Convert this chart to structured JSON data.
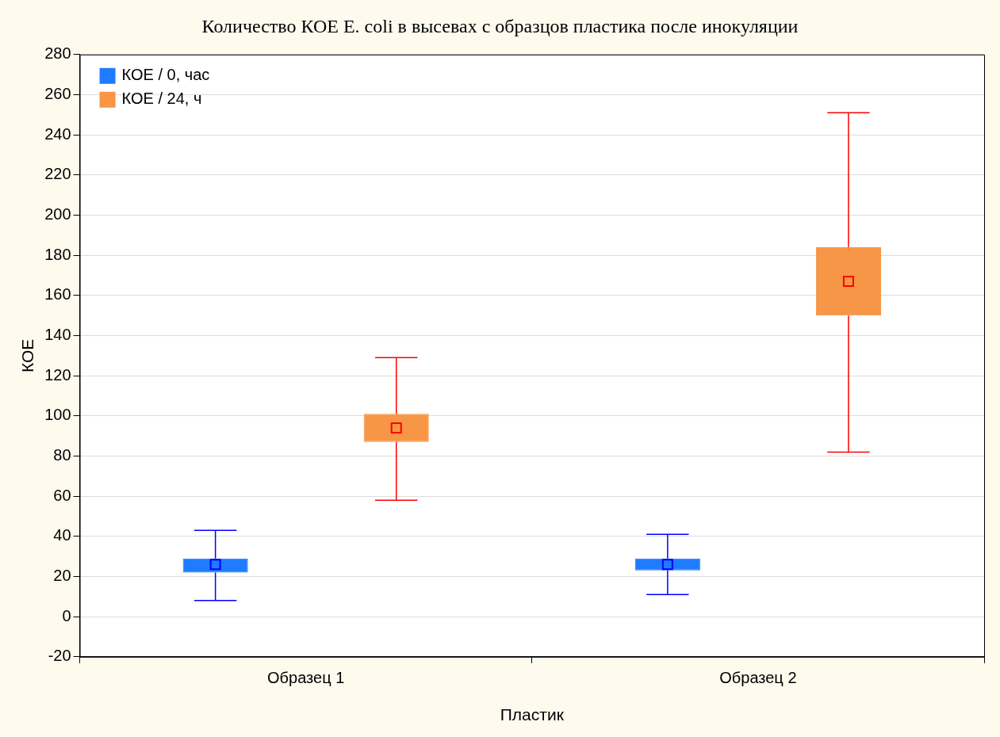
{
  "chart_data": {
    "type": "box",
    "title": "Количество КОЕ E. coli в высевах с образцов пластика после инокуляции",
    "xlabel": "Пластик",
    "ylabel": "КОЕ",
    "categories": [
      "Образец 1",
      "Образец 2"
    ],
    "series": [
      {
        "name": "КОЕ / 0, час",
        "color": "#1f7bff",
        "boxes": [
          {
            "low": 8,
            "q1": 22,
            "median": 26,
            "q3": 29,
            "high": 43
          },
          {
            "low": 11,
            "q1": 23,
            "median": 26,
            "q3": 29,
            "high": 41
          }
        ]
      },
      {
        "name": "КОЕ / 24, ч",
        "color": "#f79646",
        "boxes": [
          {
            "low": 58,
            "q1": 87,
            "median": 94,
            "q3": 101,
            "high": 129
          },
          {
            "low": 82,
            "q1": 150,
            "median": 167,
            "q3": 184,
            "high": 251
          }
        ]
      }
    ],
    "ylim": [
      -20,
      280
    ],
    "yticks": [
      -20,
      0,
      20,
      40,
      60,
      80,
      100,
      120,
      140,
      160,
      180,
      200,
      220,
      240,
      260,
      280
    ],
    "grid": "y",
    "legend": "top left",
    "marker": "square"
  }
}
